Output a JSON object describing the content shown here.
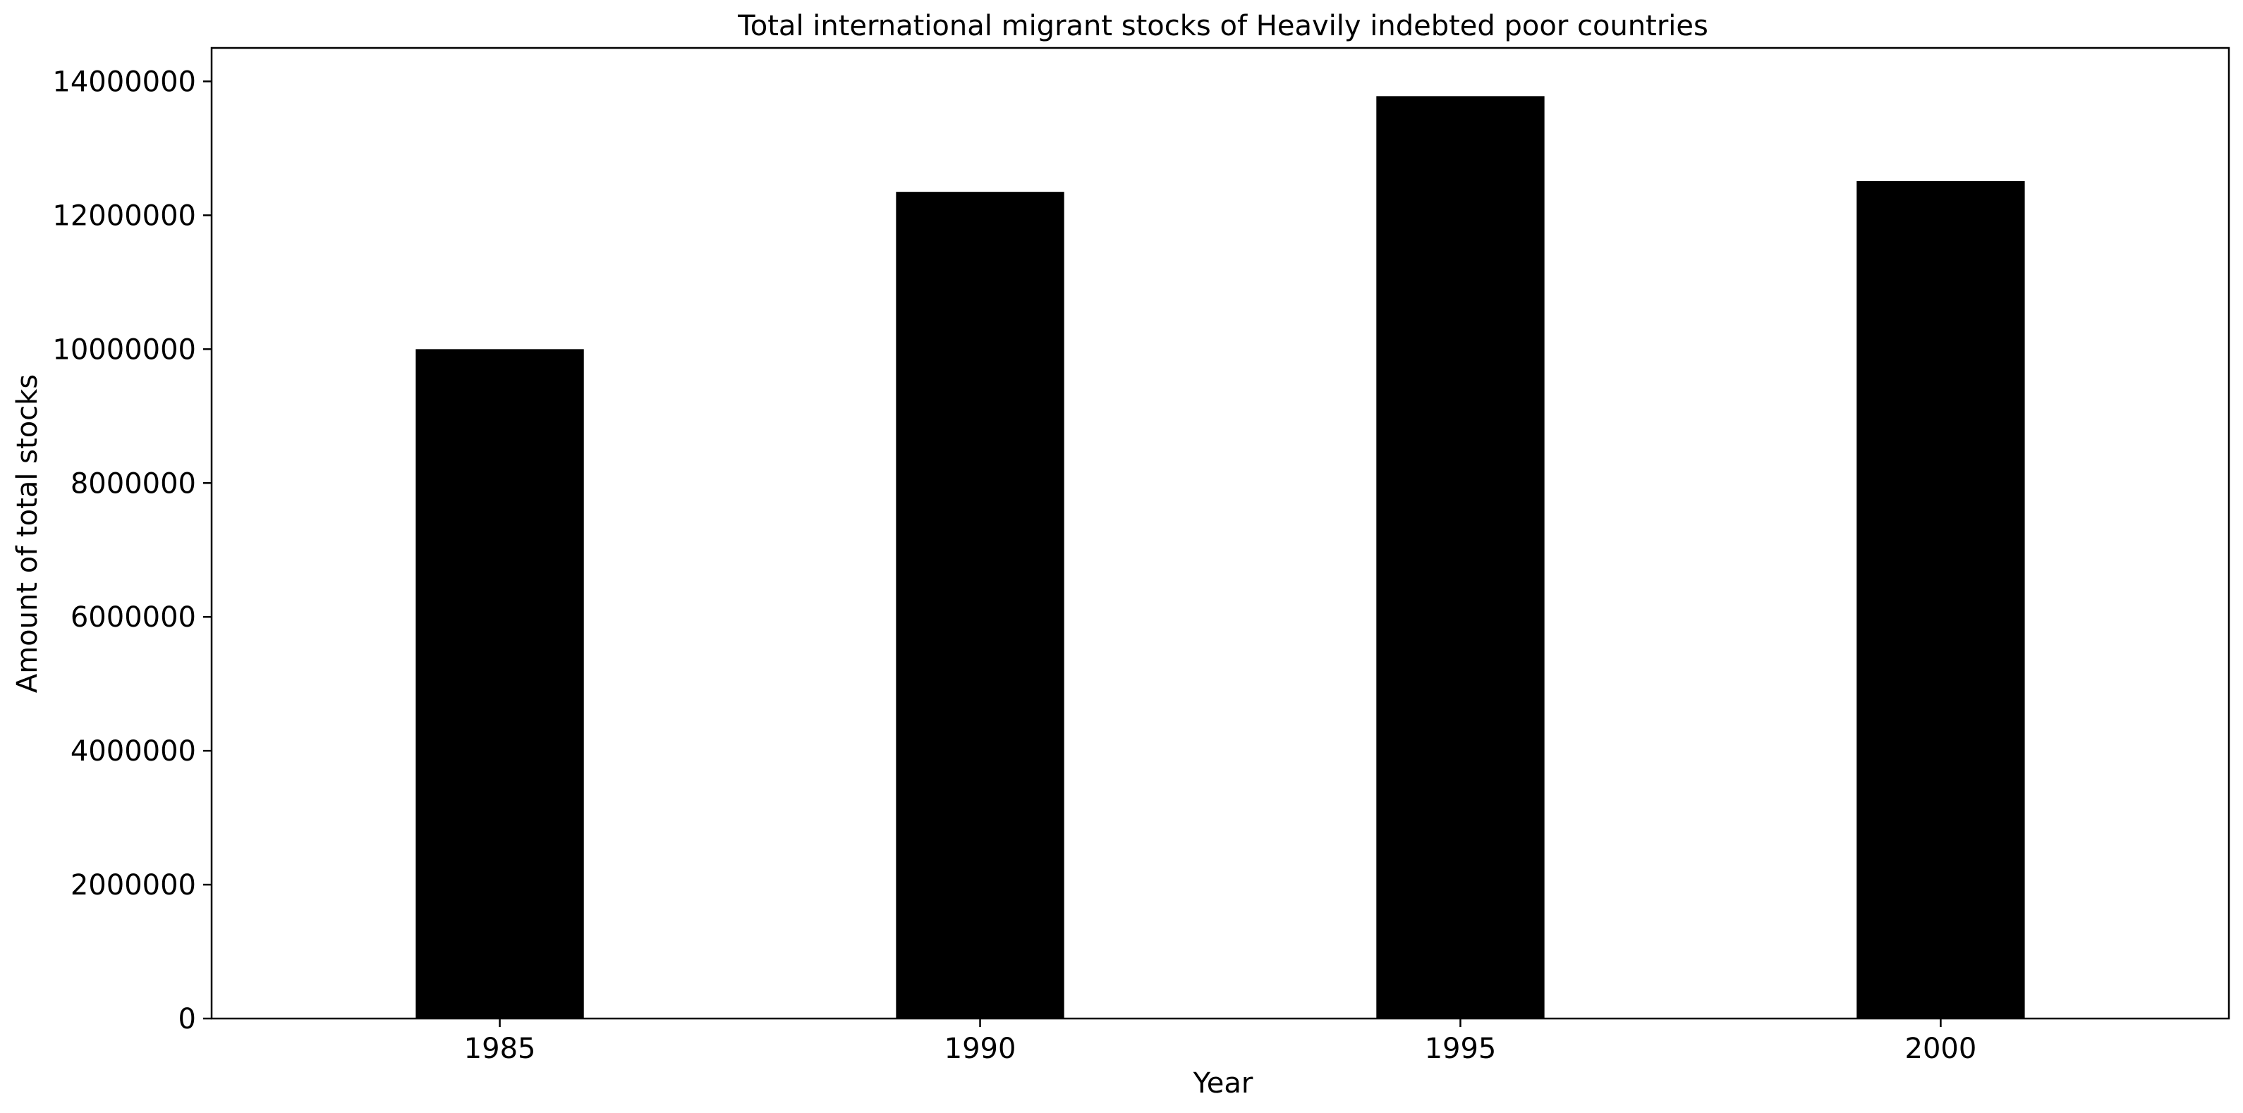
{
  "chart_data": {
    "type": "bar",
    "title": "Total international migrant stocks of Heavily indebted poor countries",
    "xlabel": "Year",
    "ylabel": "Amount of total stocks",
    "categories": [
      "1985",
      "1990",
      "1995",
      "2000"
    ],
    "values": [
      10000000,
      12350000,
      13780000,
      12510000
    ],
    "ylim": [
      0,
      14500000
    ],
    "yticks": [
      0,
      2000000,
      4000000,
      6000000,
      8000000,
      10000000,
      12000000,
      14000000
    ],
    "ytick_labels": [
      "0",
      "2000000",
      "4000000",
      "6000000",
      "8000000",
      "10000000",
      "12000000",
      "14000000"
    ],
    "grid": false,
    "legend": "none",
    "bar_color": "#000000"
  }
}
